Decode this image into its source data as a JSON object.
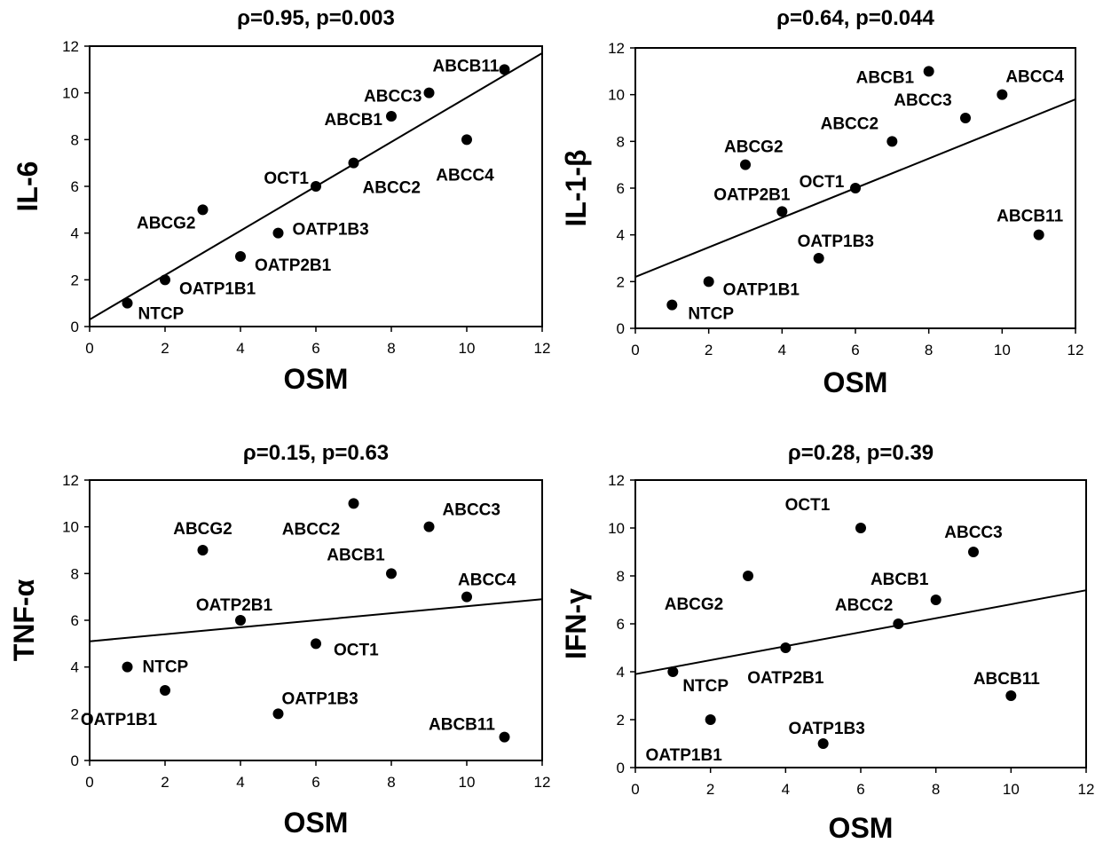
{
  "chart_data": [
    {
      "type": "scatter",
      "title": "ρ=0.95, p=0.003",
      "xlabel": "OSM",
      "ylabel": "IL-6",
      "xlim": [
        0,
        12
      ],
      "ylim": [
        0,
        12
      ],
      "xticks": [
        0,
        2,
        4,
        6,
        8,
        10,
        12
      ],
      "yticks": [
        0,
        2,
        4,
        6,
        8,
        10,
        12
      ],
      "grid": false,
      "points": [
        {
          "label": "NTCP",
          "x": 1,
          "y": 1
        },
        {
          "label": "OATP1B1",
          "x": 2,
          "y": 2
        },
        {
          "label": "ABCG2",
          "x": 3,
          "y": 5
        },
        {
          "label": "OATP2B1",
          "x": 4,
          "y": 3
        },
        {
          "label": "OATP1B3",
          "x": 5,
          "y": 4
        },
        {
          "label": "OCT1",
          "x": 6,
          "y": 6
        },
        {
          "label": "ABCC2",
          "x": 7,
          "y": 7
        },
        {
          "label": "ABCB1",
          "x": 8,
          "y": 9
        },
        {
          "label": "ABCC3",
          "x": 9,
          "y": 10
        },
        {
          "label": "ABCC4",
          "x": 10,
          "y": 8
        },
        {
          "label": "ABCB11",
          "x": 11,
          "y": 11
        }
      ],
      "trendline": {
        "x": [
          0,
          12
        ],
        "y": [
          0.3,
          11.7
        ]
      }
    },
    {
      "type": "scatter",
      "title": "ρ=0.64, p=0.044",
      "xlabel": "OSM",
      "ylabel": "IL-1-β",
      "xlim": [
        0,
        12
      ],
      "ylim": [
        0,
        12
      ],
      "xticks": [
        0,
        2,
        4,
        6,
        8,
        10,
        12
      ],
      "yticks": [
        0,
        2,
        4,
        6,
        8,
        10,
        12
      ],
      "grid": false,
      "points": [
        {
          "label": "NTCP",
          "x": 1,
          "y": 1
        },
        {
          "label": "OATP1B1",
          "x": 2,
          "y": 2
        },
        {
          "label": "ABCG2",
          "x": 3,
          "y": 7
        },
        {
          "label": "OATP2B1",
          "x": 4,
          "y": 5
        },
        {
          "label": "OATP1B3",
          "x": 5,
          "y": 3
        },
        {
          "label": "OCT1",
          "x": 6,
          "y": 6
        },
        {
          "label": "ABCC2",
          "x": 7,
          "y": 8
        },
        {
          "label": "ABCB1",
          "x": 8,
          "y": 11
        },
        {
          "label": "ABCC3",
          "x": 9,
          "y": 9
        },
        {
          "label": "ABCC4",
          "x": 10,
          "y": 10
        },
        {
          "label": "ABCB11",
          "x": 11,
          "y": 4
        }
      ],
      "trendline": {
        "x": [
          0,
          12
        ],
        "y": [
          2.2,
          9.8
        ]
      }
    },
    {
      "type": "scatter",
      "title": "ρ=0.15, p=0.63",
      "xlabel": "OSM",
      "ylabel": "TNF-α",
      "xlim": [
        0,
        12
      ],
      "ylim": [
        0,
        12
      ],
      "xticks": [
        0,
        2,
        4,
        6,
        8,
        10,
        12
      ],
      "yticks": [
        0,
        2,
        4,
        6,
        8,
        10,
        12
      ],
      "grid": false,
      "points": [
        {
          "label": "NTCP",
          "x": 1,
          "y": 4
        },
        {
          "label": "OATP1B1",
          "x": 2,
          "y": 3
        },
        {
          "label": "ABCG2",
          "x": 3,
          "y": 9
        },
        {
          "label": "OATP2B1",
          "x": 4,
          "y": 6
        },
        {
          "label": "OATP1B3",
          "x": 5,
          "y": 2
        },
        {
          "label": "OCT1",
          "x": 6,
          "y": 5
        },
        {
          "label": "ABCC2",
          "x": 7,
          "y": 11
        },
        {
          "label": "ABCB1",
          "x": 8,
          "y": 8
        },
        {
          "label": "ABCC3",
          "x": 9,
          "y": 10
        },
        {
          "label": "ABCC4",
          "x": 10,
          "y": 7
        },
        {
          "label": "ABCB11",
          "x": 11,
          "y": 1
        }
      ],
      "trendline": {
        "x": [
          0,
          12
        ],
        "y": [
          5.1,
          6.9
        ]
      }
    },
    {
      "type": "scatter",
      "title": "ρ=0.28, p=0.39",
      "xlabel": "OSM",
      "ylabel": "IFN-γ",
      "xlim": [
        0,
        12
      ],
      "ylim": [
        0,
        12
      ],
      "xticks": [
        0,
        2,
        4,
        6,
        8,
        10,
        12
      ],
      "yticks": [
        0,
        2,
        4,
        6,
        8,
        10,
        12
      ],
      "grid": false,
      "points": [
        {
          "label": "NTCP",
          "x": 1,
          "y": 4
        },
        {
          "label": "OATP1B1",
          "x": 2,
          "y": 2
        },
        {
          "label": "ABCG2",
          "x": 3,
          "y": 8
        },
        {
          "label": "OATP2B1",
          "x": 4,
          "y": 5
        },
        {
          "label": "OATP1B3",
          "x": 5,
          "y": 1
        },
        {
          "label": "OCT1",
          "x": 6,
          "y": 10
        },
        {
          "label": "ABCC2",
          "x": 7,
          "y": 6
        },
        {
          "label": "ABCB1",
          "x": 8,
          "y": 7
        },
        {
          "label": "ABCC3",
          "x": 9,
          "y": 9
        },
        {
          "label": "ABCB11",
          "x": 10,
          "y": 3
        }
      ],
      "trendline": {
        "x": [
          0,
          12
        ],
        "y": [
          3.9,
          7.4
        ]
      }
    }
  ]
}
